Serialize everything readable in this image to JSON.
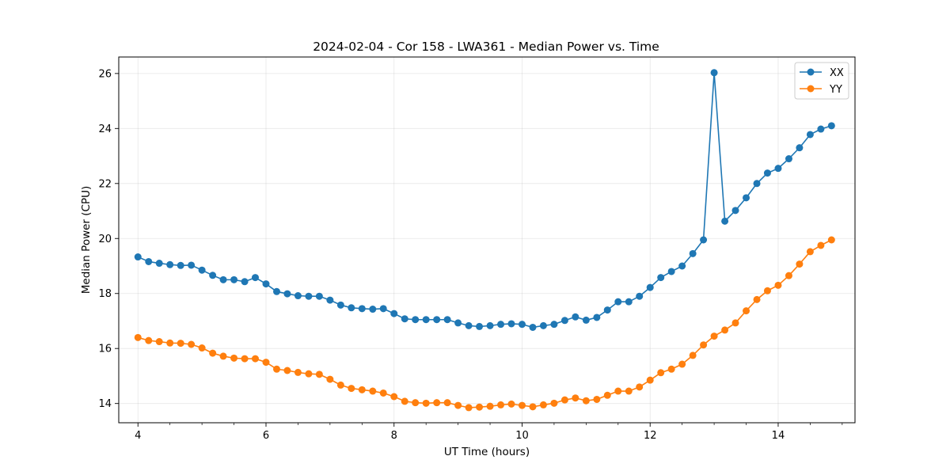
{
  "chart_data": {
    "type": "line",
    "title": "2024-02-04 - Cor 158 - LWA361 - Median Power vs. Time",
    "xlabel": "UT Time (hours)",
    "ylabel": "Median Power (CPU)",
    "xlim": [
      3.7,
      15.2
    ],
    "ylim": [
      13.3,
      26.6
    ],
    "xticks": [
      4,
      6,
      8,
      10,
      12,
      14
    ],
    "yticks": [
      14,
      16,
      18,
      20,
      22,
      24,
      26
    ],
    "grid": true,
    "legend_position": "top-right",
    "x": [
      4.0,
      4.167,
      4.333,
      4.5,
      4.667,
      4.833,
      5.0,
      5.167,
      5.333,
      5.5,
      5.667,
      5.833,
      6.0,
      6.167,
      6.333,
      6.5,
      6.667,
      6.833,
      7.0,
      7.167,
      7.333,
      7.5,
      7.667,
      7.833,
      8.0,
      8.167,
      8.333,
      8.5,
      8.667,
      8.833,
      9.0,
      9.167,
      9.333,
      9.5,
      9.667,
      9.833,
      10.0,
      10.167,
      10.333,
      10.5,
      10.667,
      10.833,
      11.0,
      11.167,
      11.333,
      11.5,
      11.667,
      11.833,
      12.0,
      12.167,
      12.333,
      12.5,
      12.667,
      12.833,
      13.0,
      13.167,
      13.333,
      13.5,
      13.667,
      13.833,
      14.0,
      14.167,
      14.333,
      14.5,
      14.667,
      14.833
    ],
    "series": [
      {
        "name": "XX",
        "color": "#1f77b4",
        "values": [
          19.33,
          19.16,
          19.1,
          19.05,
          19.02,
          19.03,
          18.85,
          18.66,
          18.5,
          18.5,
          18.43,
          18.58,
          18.35,
          18.07,
          17.99,
          17.92,
          17.9,
          17.9,
          17.76,
          17.58,
          17.48,
          17.45,
          17.43,
          17.45,
          17.27,
          17.08,
          17.05,
          17.05,
          17.05,
          17.05,
          16.93,
          16.83,
          16.8,
          16.83,
          16.88,
          16.9,
          16.88,
          16.77,
          16.83,
          16.88,
          17.02,
          17.15,
          17.03,
          17.13,
          17.4,
          17.7,
          17.7,
          17.9,
          18.22,
          18.58,
          18.8,
          19.0,
          19.45,
          19.95,
          26.03,
          20.63,
          21.02,
          21.48,
          22.0,
          22.38,
          22.55,
          22.9,
          23.3,
          23.78,
          23.98,
          24.1
        ]
      },
      {
        "name": "YY",
        "color": "#ff7f0e",
        "values": [
          16.4,
          16.29,
          16.25,
          16.2,
          16.19,
          16.15,
          16.02,
          15.83,
          15.72,
          15.65,
          15.63,
          15.63,
          15.5,
          15.25,
          15.2,
          15.13,
          15.08,
          15.06,
          14.88,
          14.67,
          14.55,
          14.5,
          14.45,
          14.38,
          14.25,
          14.08,
          14.03,
          14.01,
          14.03,
          14.03,
          13.93,
          13.85,
          13.87,
          13.9,
          13.95,
          13.98,
          13.93,
          13.88,
          13.95,
          14.01,
          14.13,
          14.2,
          14.1,
          14.15,
          14.3,
          14.45,
          14.45,
          14.6,
          14.85,
          15.12,
          15.25,
          15.43,
          15.75,
          16.13,
          16.45,
          16.67,
          16.93,
          17.37,
          17.78,
          18.1,
          18.3,
          18.65,
          19.07,
          19.52,
          19.75,
          19.95
        ]
      }
    ]
  }
}
